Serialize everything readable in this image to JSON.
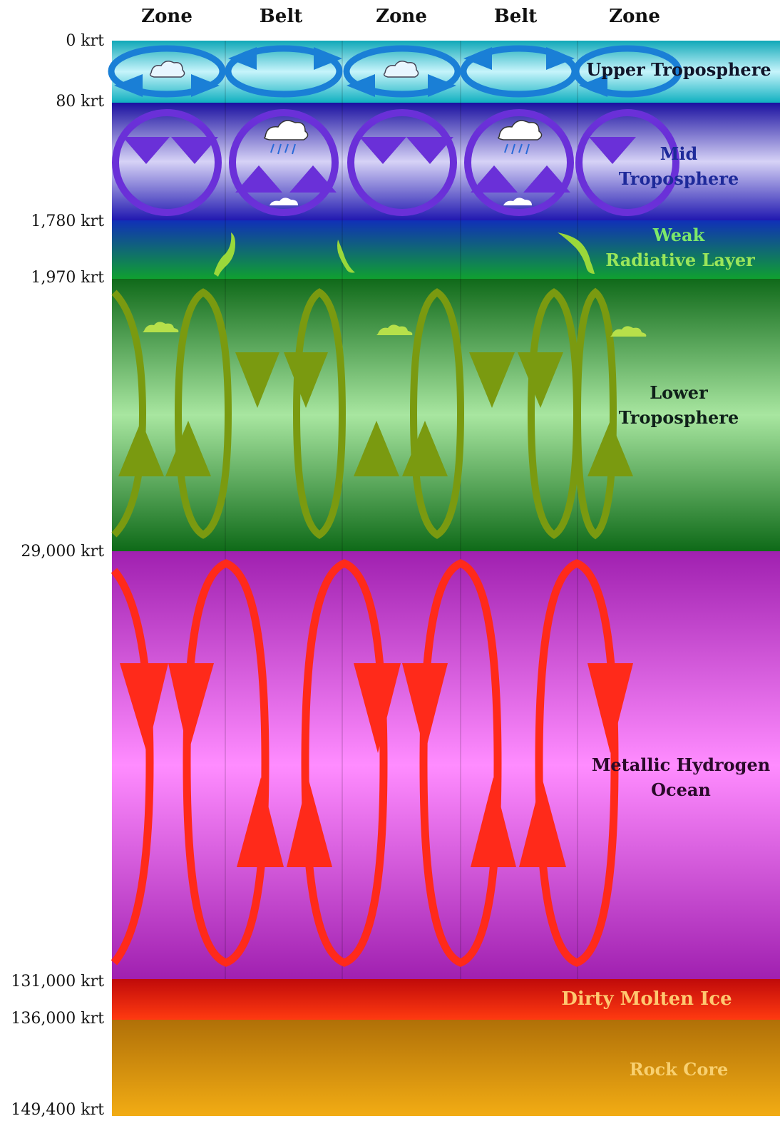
{
  "columns": [
    "Zone",
    "Belt",
    "Zone",
    "Belt",
    "Zone"
  ],
  "depths": [
    "0 krt",
    "80 krt",
    "1,780 krt",
    "1,970 krt",
    "29,000 krt",
    "131,000 krt",
    "136,000 krt",
    "149,400 krt"
  ],
  "layers": {
    "upper": {
      "label": "Upper Troposphere",
      "color": "#12b8c8"
    },
    "mid": {
      "line1": "Mid",
      "line2": "Troposphere",
      "color": "#3a2fc4"
    },
    "radiative": {
      "line1": "Weak",
      "line2": "Radiative Layer",
      "color": "#1aa03a"
    },
    "lower": {
      "line1": "Lower",
      "line2": "Troposphere",
      "color": "#2e9a2e"
    },
    "metallic": {
      "line1": "Metallic Hydrogen",
      "line2": "Ocean",
      "color": "#e040e8"
    },
    "ice": {
      "label": "Dirty Molten Ice",
      "color": "#e8200a"
    },
    "core": {
      "label": "Rock Core",
      "color": "#e8a010"
    }
  },
  "arrow_colors": {
    "upper": "#1a7fd6",
    "mid": "#6a30d8",
    "lower": "#7a9a10",
    "metallic": "#ff2a1a"
  }
}
